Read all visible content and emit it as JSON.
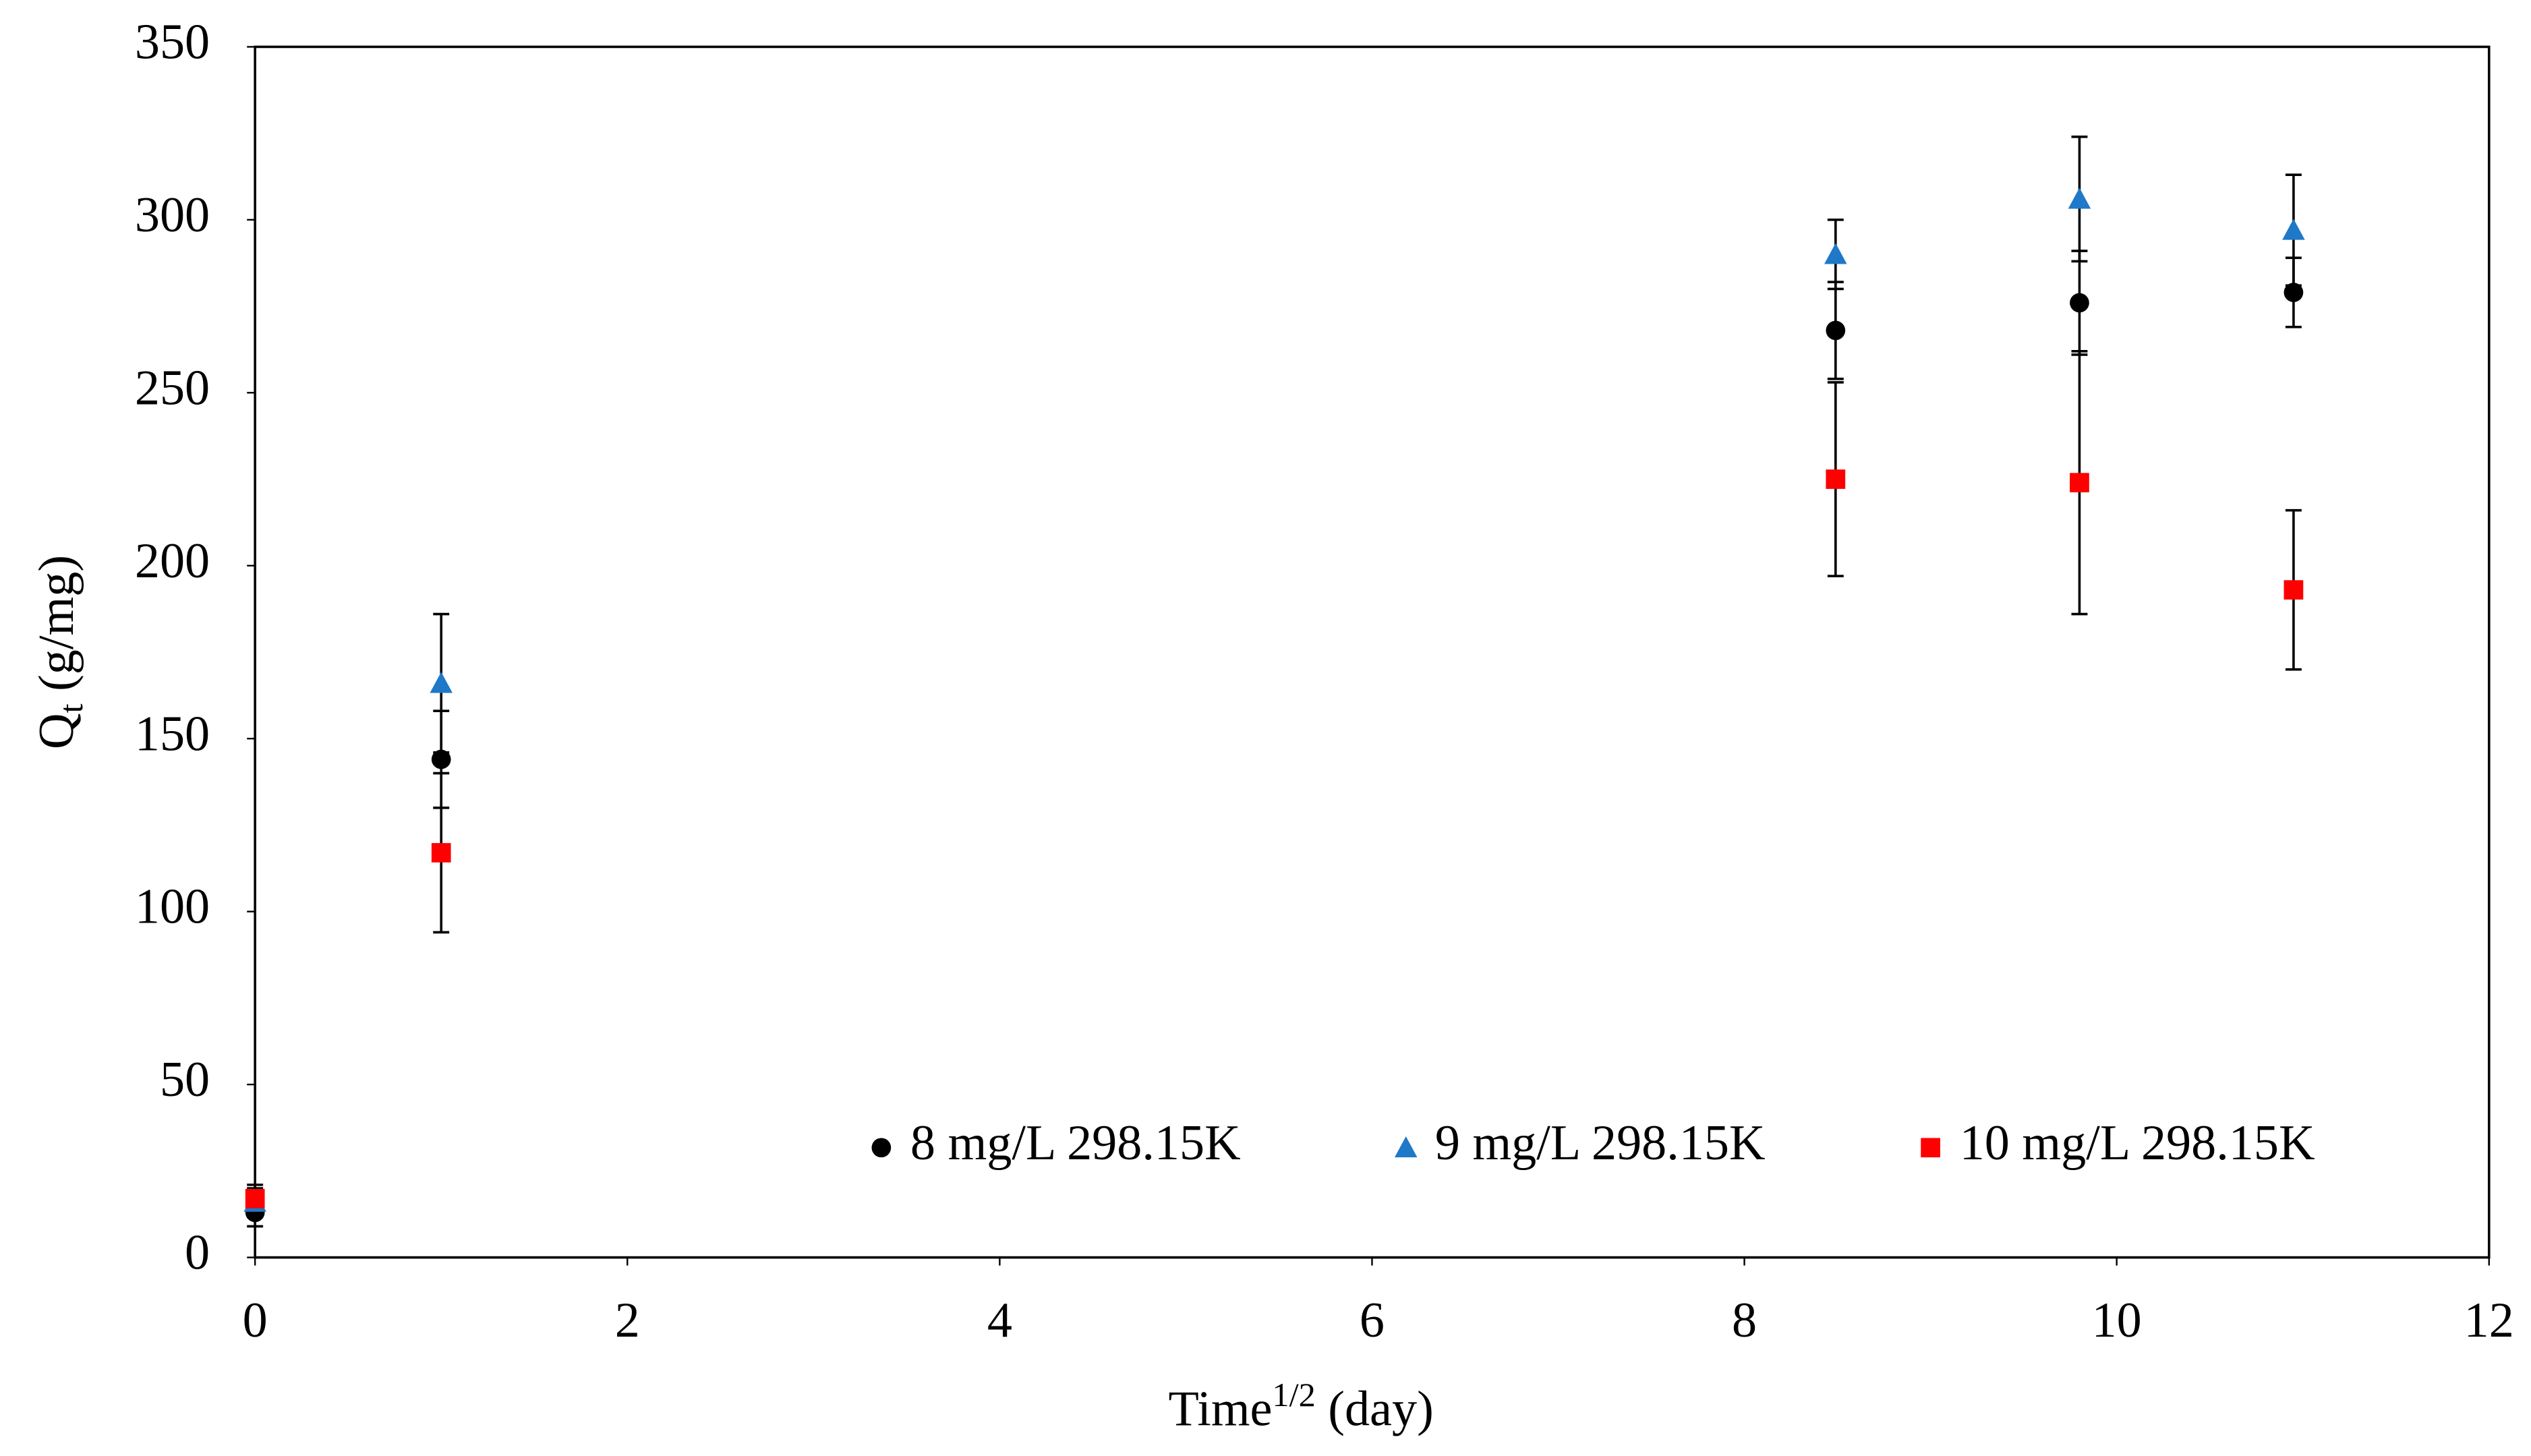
{
  "chart_data": {
    "type": "scatter",
    "x_label": {
      "text": "Time",
      "sup": "1/2",
      "after": " (day)"
    },
    "y_label": {
      "text": "Q",
      "sub": "t",
      "after": " (g/mg)"
    },
    "xlim": [
      0,
      12
    ],
    "xticks": [
      0,
      2,
      4,
      6,
      8,
      10,
      12
    ],
    "ylim": [
      0,
      350
    ],
    "yticks": [
      0,
      50,
      100,
      150,
      200,
      250,
      300,
      350
    ],
    "grid": false,
    "legend": "bottom",
    "series": [
      {
        "name": "8 mg/L 298.15K",
        "color": "#000000",
        "marker": "circle",
        "x": [
          0,
          1,
          8.49,
          9.8,
          10.95
        ],
        "values": [
          13,
          144,
          268,
          276,
          279
        ],
        "errors": [
          4,
          14,
          14,
          15,
          10
        ]
      },
      {
        "name": "9 mg/L 298.15K",
        "color": "#1f78c8",
        "marker": "triangle",
        "x": [
          0,
          1,
          8.49,
          9.8,
          10.95
        ],
        "values": [
          16,
          166,
          290,
          306,
          297
        ],
        "errors": [
          4,
          20,
          10,
          18,
          16
        ]
      },
      {
        "name": "10 mg/L 298.15K",
        "color": "#ff0000",
        "marker": "square",
        "x": [
          0,
          1,
          8.49,
          9.8,
          10.95
        ],
        "values": [
          17,
          117,
          225,
          224,
          193
        ],
        "errors": [
          4,
          23,
          28,
          38,
          23
        ]
      }
    ]
  }
}
